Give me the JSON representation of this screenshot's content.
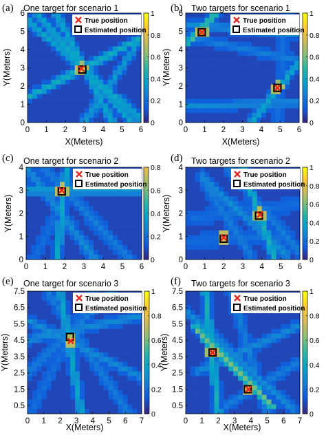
{
  "figure": {
    "colormap": "parula",
    "colormap_stops": [
      "#352a87",
      "#0f5cdd",
      "#1481d6",
      "#06a4ca",
      "#2eb7a4",
      "#87bf77",
      "#d1bb59",
      "#fec832",
      "#f9fb0e"
    ],
    "true_marker_color": "#e8251f",
    "estimate_marker_color": "#000000"
  },
  "chart_data": [
    {
      "type": "heatmap",
      "panel_label": "(a)",
      "title": "One target for scenario 1",
      "xlabel": "X(Meters)",
      "ylabel": "Y(Meters)",
      "xlim": [
        0,
        6
      ],
      "ylim": [
        0,
        6
      ],
      "xticks": [
        "0",
        "1",
        "2",
        "3",
        "4",
        "5",
        "6"
      ],
      "yticks": [
        "0",
        "1",
        "2",
        "3",
        "4",
        "5",
        "6"
      ],
      "colorbar": {
        "range": [
          0,
          1
        ],
        "ticks": [
          "0",
          "0.2",
          "0.4",
          "0.6",
          "0.8",
          "1"
        ]
      },
      "legend": {
        "location": "top-right",
        "entries": [
          "True position",
          "Estimated position"
        ]
      },
      "grid_intensity_lines": [
        {
          "from": [
            0,
            1.4
          ],
          "to": [
            6,
            4.6
          ],
          "level": 0.45
        },
        {
          "from": [
            0.5,
            6
          ],
          "to": [
            5.5,
            0
          ],
          "level": 0.4
        },
        {
          "from": [
            1.5,
            6
          ],
          "to": [
            4.5,
            0
          ],
          "level": 0.4
        },
        {
          "from": [
            0,
            5.6
          ],
          "to": [
            6,
            0.2
          ],
          "level": 0.4
        },
        {
          "from": [
            3,
            0
          ],
          "to": [
            6,
            4.6
          ],
          "level": 0.35
        }
      ],
      "true_positions": [
        [
          2.85,
          2.95
        ]
      ],
      "estimated_positions": [
        [
          2.9,
          2.9
        ]
      ]
    },
    {
      "type": "heatmap",
      "panel_label": "(b)",
      "title": "Two targets for scenario 1",
      "xlabel": "X(Meters)",
      "ylabel": "Y(Meters)",
      "xlim": [
        0,
        6
      ],
      "ylim": [
        0,
        6
      ],
      "xticks": [
        "0",
        "1",
        "2",
        "3",
        "4",
        "5",
        "6"
      ],
      "yticks": [
        "0",
        "1",
        "2",
        "3",
        "4",
        "5",
        "6"
      ],
      "colorbar": {
        "range": [
          0,
          1
        ],
        "ticks": [
          "0",
          "0.2",
          "0.4",
          "0.6",
          "0.8",
          "1"
        ]
      },
      "legend": {
        "location": "top-right",
        "entries": [
          "True position",
          "Estimated position"
        ]
      },
      "grid_intensity_lines": [
        {
          "from": [
            0.2,
            4.4
          ],
          "to": [
            1.6,
            6
          ],
          "level": 0.55
        },
        {
          "from": [
            0,
            5.4
          ],
          "to": [
            6,
            4.8
          ],
          "level": 0.3
        },
        {
          "from": [
            0,
            4.7
          ],
          "to": [
            6,
            3.4
          ],
          "level": 0.25
        },
        {
          "from": [
            0,
            0.9
          ],
          "to": [
            6,
            1.1
          ],
          "level": 0.3
        },
        {
          "from": [
            3.5,
            0
          ],
          "to": [
            6,
            3.3
          ],
          "level": 0.4
        },
        {
          "from": [
            4.8,
            0
          ],
          "to": [
            5.3,
            6
          ],
          "level": 0.2
        }
      ],
      "true_positions": [
        [
          0.85,
          4.95
        ],
        [
          4.85,
          1.9
        ]
      ],
      "estimated_positions": [
        [
          0.85,
          4.95
        ],
        [
          4.85,
          1.9
        ]
      ]
    },
    {
      "type": "heatmap",
      "panel_label": "(c)",
      "title": "One target for scenario 2",
      "xlabel": "",
      "ylabel": "Y(Meters)",
      "xlim": [
        0,
        6
      ],
      "ylim": [
        0,
        4
      ],
      "xticks": [
        "0",
        "1",
        "2",
        "3",
        "4",
        "5",
        "6"
      ],
      "yticks": [
        "0",
        "1",
        "2",
        "3",
        "4"
      ],
      "colorbar": {
        "range": [
          0,
          0.8
        ],
        "ticks": [
          "0",
          "0.2",
          "0.4",
          "0.6",
          "0.8"
        ]
      },
      "legend": {
        "location": "top-right",
        "entries": [
          "True position",
          "Estimated position"
        ]
      },
      "grid_intensity_lines": [
        {
          "from": [
            0,
            3.0
          ],
          "to": [
            6,
            3.0
          ],
          "level": 0.35
        },
        {
          "from": [
            1.6,
            0
          ],
          "to": [
            2.1,
            4
          ],
          "level": 0.4
        },
        {
          "from": [
            0,
            4
          ],
          "to": [
            3.6,
            0
          ],
          "level": 0.3
        },
        {
          "from": [
            0.9,
            4
          ],
          "to": [
            5.4,
            0
          ],
          "level": 0.25
        },
        {
          "from": [
            0.4,
            0
          ],
          "to": [
            2.8,
            4
          ],
          "level": 0.2
        }
      ],
      "true_positions": [
        [
          1.85,
          3.0
        ]
      ],
      "estimated_positions": [
        [
          1.85,
          2.95
        ]
      ]
    },
    {
      "type": "heatmap",
      "panel_label": "(d)",
      "title": "Two targets for scenario 2",
      "xlabel": "",
      "ylabel": "Y(Meters)",
      "xlim": [
        0,
        6
      ],
      "ylim": [
        0,
        4
      ],
      "xticks": [
        "0",
        "1",
        "2",
        "3",
        "4",
        "5",
        "6"
      ],
      "yticks": [
        "0",
        "1",
        "2",
        "3",
        "4"
      ],
      "colorbar": {
        "range": [
          0,
          1
        ],
        "ticks": [
          "0",
          "0.2",
          "0.4",
          "0.6",
          "0.8",
          "1"
        ]
      },
      "legend": {
        "location": "top-right",
        "entries": [
          "True position",
          "Estimated position"
        ]
      },
      "grid_intensity_lines": [
        {
          "from": [
            0.8,
            3.6
          ],
          "to": [
            5.3,
            0.2
          ],
          "level": 0.3
        },
        {
          "from": [
            3.0,
            4
          ],
          "to": [
            4.7,
            0
          ],
          "level": 0.45
        },
        {
          "from": [
            2.2,
            4
          ],
          "to": [
            6,
            0.3
          ],
          "level": 0.25
        },
        {
          "from": [
            1.0,
            3.3
          ],
          "to": [
            3.4,
            0.2
          ],
          "level": 0.25
        },
        {
          "from": [
            0.3,
            1.8
          ],
          "to": [
            6,
            2.4
          ],
          "level": 0.2
        },
        {
          "from": [
            0.1,
            0.8
          ],
          "to": [
            5.5,
            1.0
          ],
          "level": 0.2
        }
      ],
      "true_positions": [
        [
          2.0,
          0.95
        ],
        [
          3.9,
          1.95
        ]
      ],
      "estimated_positions": [
        [
          2.0,
          0.9
        ],
        [
          3.85,
          1.9
        ]
      ]
    },
    {
      "type": "heatmap",
      "panel_label": "(e)",
      "title": "One target for scenario 3",
      "xlabel": "X(Meters)",
      "ylabel": "Y(Meters)",
      "xlim": [
        0,
        7
      ],
      "ylim": [
        0,
        7.5
      ],
      "xticks": [
        "0",
        "1",
        "2",
        "3",
        "4",
        "5",
        "6",
        "7"
      ],
      "yticks": [
        "0.5",
        "1.5",
        "2.5",
        "3.5",
        "4.5",
        "5.5",
        "6.5",
        "7.5"
      ],
      "ytick_values": [
        0.5,
        1.5,
        2.5,
        3.5,
        4.5,
        5.5,
        6.5,
        7.5
      ],
      "colorbar": {
        "range": [
          0,
          1
        ],
        "ticks": [
          "0",
          "0.2",
          "0.4",
          "0.6",
          "0.8",
          "1"
        ]
      },
      "legend": {
        "location": "top-right",
        "entries": [
          "True position",
          "Estimated position"
        ]
      },
      "grid_intensity_lines": [
        {
          "from": [
            2.0,
            7.5
          ],
          "to": [
            3.3,
            0
          ],
          "level": 0.4
        },
        {
          "from": [
            0,
            4.5
          ],
          "to": [
            7,
            6.0
          ],
          "level": 0.3
        },
        {
          "from": [
            0,
            5.7
          ],
          "to": [
            7,
            2.2
          ],
          "level": 0.3
        },
        {
          "from": [
            1.2,
            7.5
          ],
          "to": [
            6.2,
            0
          ],
          "level": 0.25
        },
        {
          "from": [
            0,
            2.5
          ],
          "to": [
            5.3,
            7.5
          ],
          "level": 0.25
        },
        {
          "from": [
            0.2,
            0
          ],
          "to": [
            4.0,
            7.5
          ],
          "level": 0.2
        }
      ],
      "true_positions": [
        [
          2.65,
          4.45
        ]
      ],
      "estimated_positions": [
        [
          2.6,
          4.7
        ]
      ]
    },
    {
      "type": "heatmap",
      "panel_label": "(f)",
      "title": "Two targets for scenario 3",
      "xlabel": "X(Meters)",
      "ylabel": "Y(Meters)",
      "xlim": [
        0,
        7
      ],
      "ylim": [
        0,
        7.5
      ],
      "xticks": [
        "0",
        "1",
        "2",
        "3",
        "4",
        "5",
        "6",
        "7"
      ],
      "yticks": [
        "0.5",
        "1.5",
        "2.5",
        "3.5",
        "4.5",
        "5.5",
        "6.5",
        "7.5"
      ],
      "ytick_values": [
        0.5,
        1.5,
        2.5,
        3.5,
        4.5,
        5.5,
        6.5,
        7.5
      ],
      "colorbar": {
        "range": [
          0,
          1
        ],
        "ticks": [
          "0",
          "0.2",
          "0.4",
          "0.6",
          "0.8",
          "1"
        ]
      },
      "legend": {
        "location": "top-right",
        "entries": [
          "True position",
          "Estimated position"
        ]
      },
      "grid_intensity_lines": [
        {
          "from": [
            0.6,
            5.2
          ],
          "to": [
            5.3,
            0.5
          ],
          "level": 0.6
        },
        {
          "from": [
            1.2,
            7.5
          ],
          "to": [
            2.0,
            0
          ],
          "level": 0.45
        },
        {
          "from": [
            0.8,
            2.6
          ],
          "to": [
            7,
            5.4
          ],
          "level": 0.3
        },
        {
          "from": [
            2.8,
            7.5
          ],
          "to": [
            5.0,
            0
          ],
          "level": 0.25
        },
        {
          "from": [
            0,
            6.3
          ],
          "to": [
            6.5,
            0.3
          ],
          "level": 0.3
        },
        {
          "from": [
            2.5,
            0.5
          ],
          "to": [
            7,
            3.2
          ],
          "level": 0.25
        }
      ],
      "true_positions": [
        [
          1.65,
          3.75
        ],
        [
          3.85,
          1.5
        ]
      ],
      "estimated_positions": [
        [
          1.65,
          3.75
        ],
        [
          3.8,
          1.5
        ]
      ]
    }
  ]
}
